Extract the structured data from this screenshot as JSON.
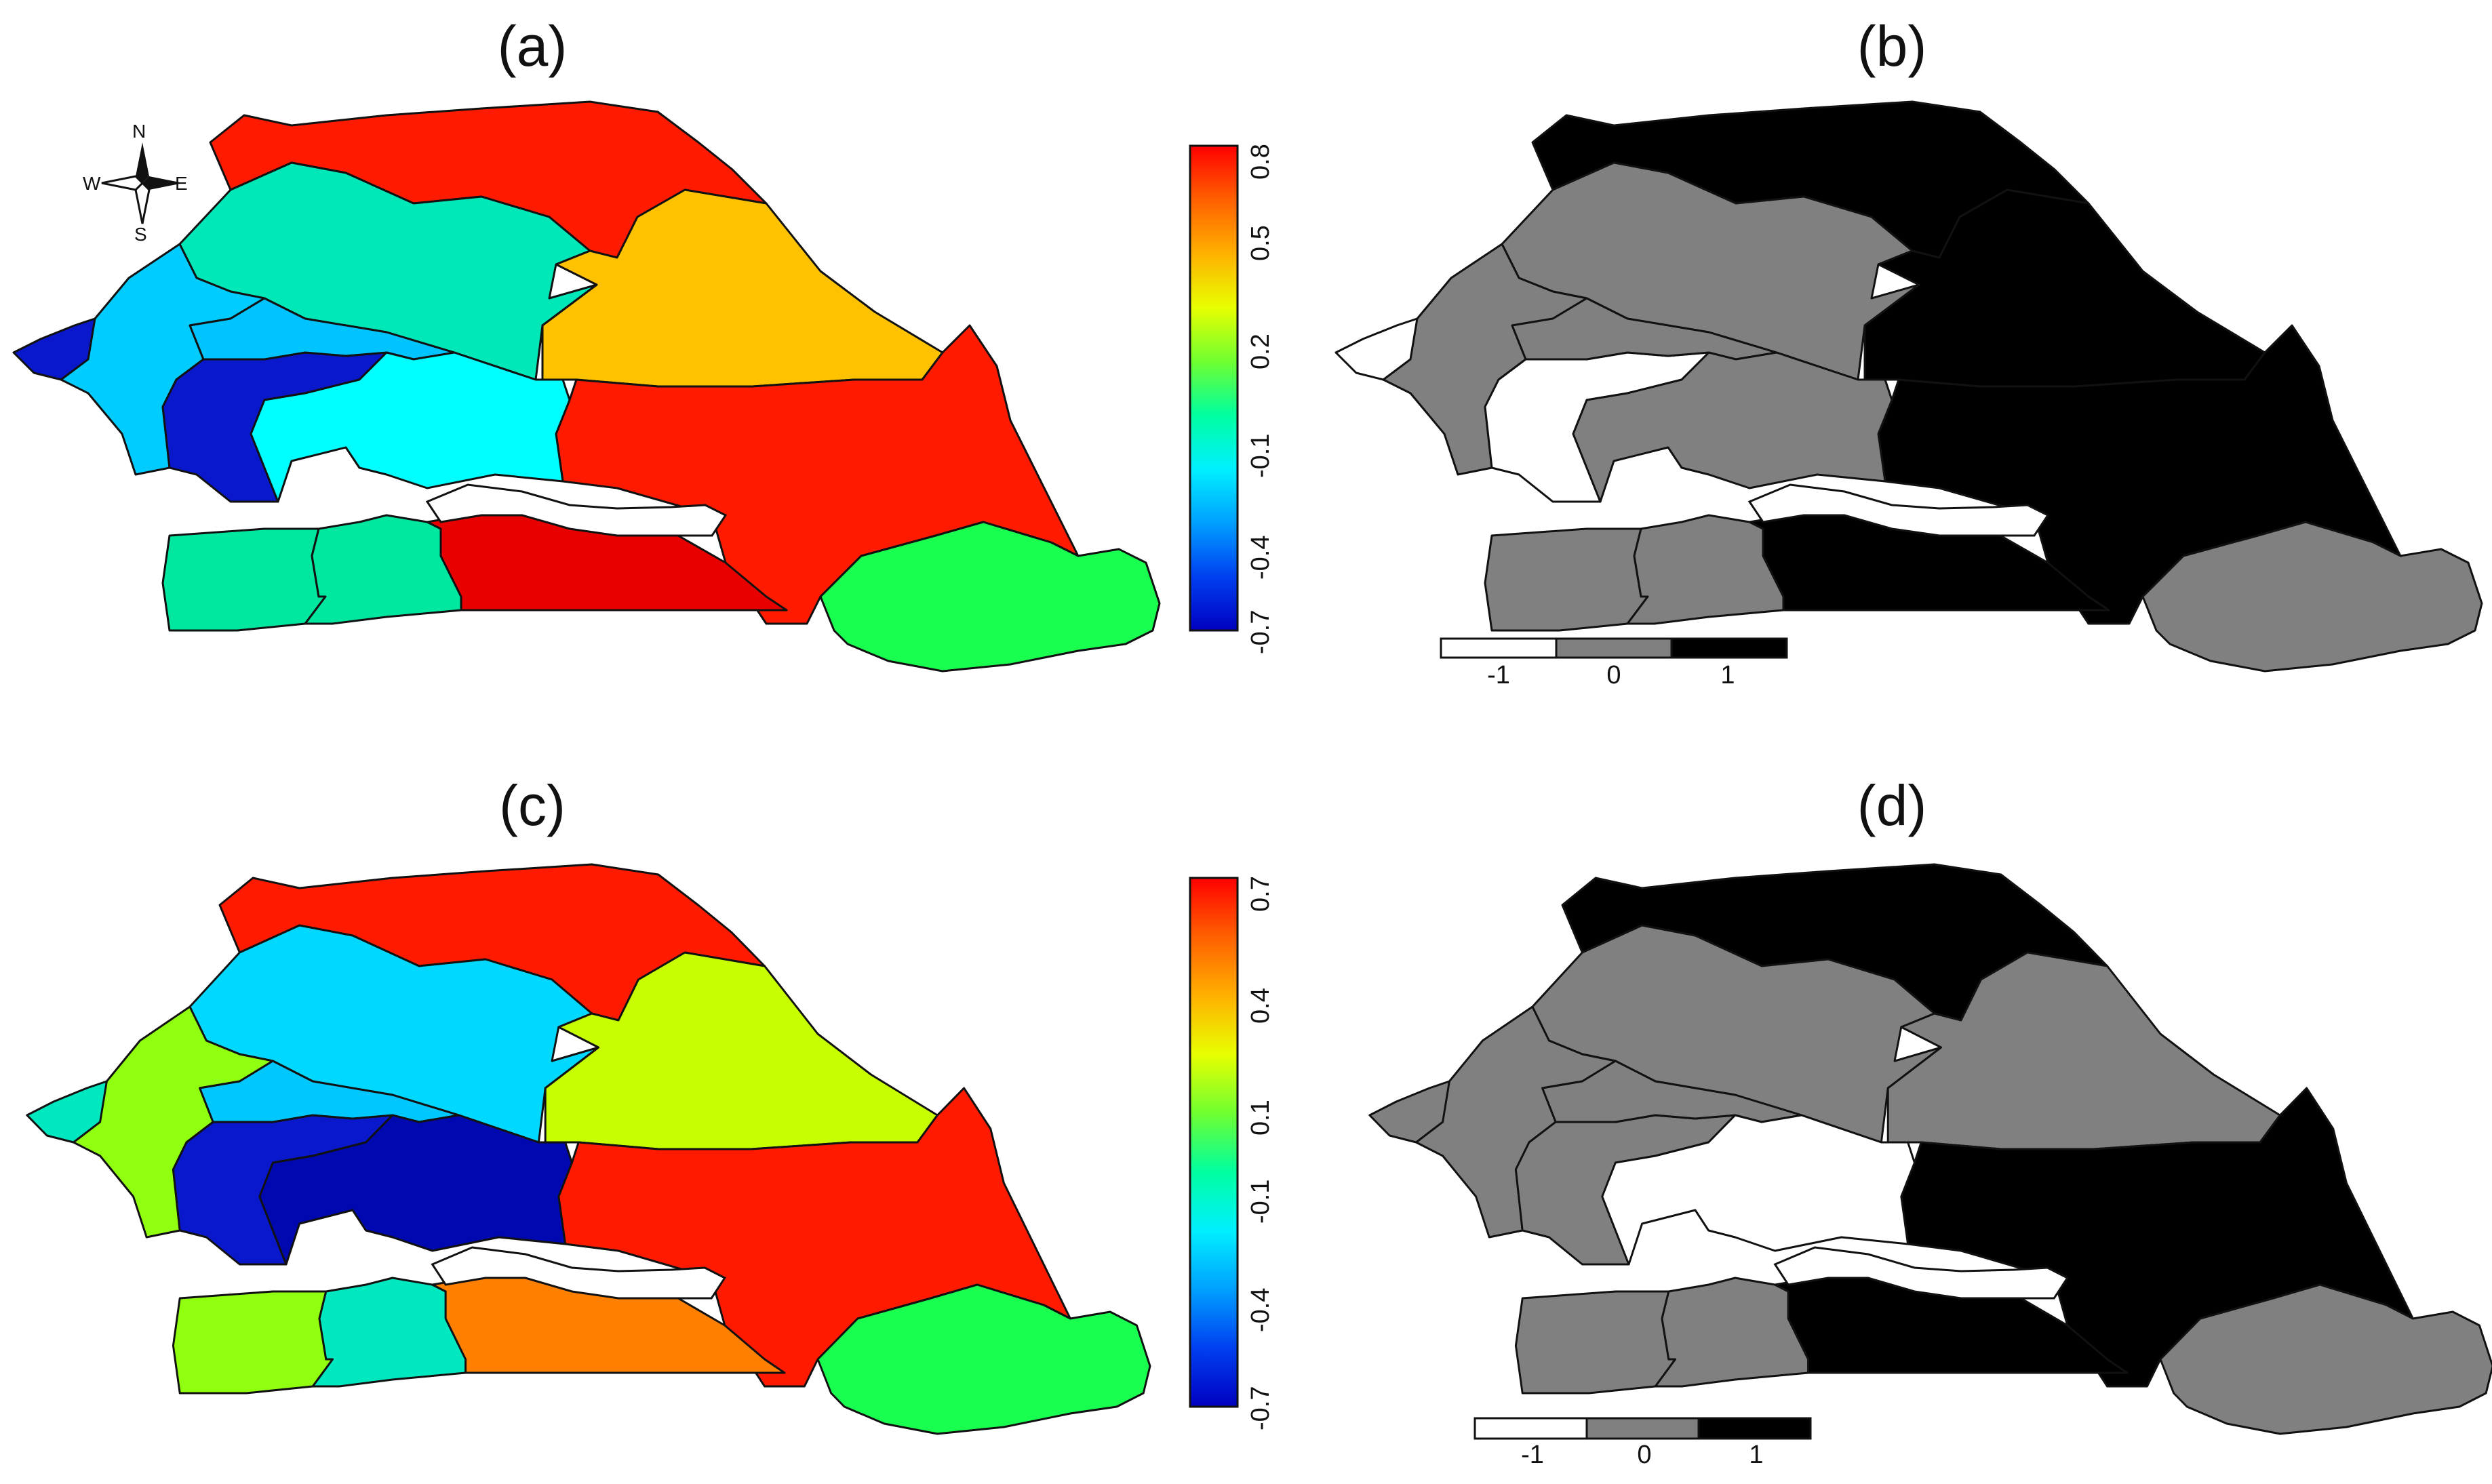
{
  "panels": [
    {
      "id": "a",
      "title": "(a)",
      "legend": {
        "type": "continuous",
        "tick_labels": [
          "0.8",
          "0.5",
          "0.2",
          "-0.1",
          "-0.4",
          "-0.7"
        ],
        "tick_values": [
          0.8,
          0.5,
          0.2,
          -0.1,
          -0.4,
          -0.7
        ],
        "range": [
          -0.7,
          0.8
        ]
      },
      "regions": {
        "north": "#ff1a00",
        "center_north": "#00e8b8",
        "center": "#ffc200",
        "east": "#ff1a00",
        "west": "#00ccff",
        "dakar": "#0a18cc",
        "thies_w": "#0a18cc",
        "thies_e": "#00c4ff",
        "kaolack": "#00ffff",
        "ziguinchor": "#00e8a0",
        "sedhiou": "#00e8a0",
        "kolda": "#e80000",
        "kedougou": "#18ff50",
        "south_west": "#1a30d6"
      }
    },
    {
      "id": "b",
      "title": "(b)",
      "legend": {
        "type": "discrete",
        "classes": [
          "-1",
          "0",
          "1"
        ],
        "colors": [
          "#ffffff",
          "#808080",
          "#000000"
        ]
      },
      "regions": {
        "north": "#000000",
        "center_north": "#808080",
        "center": "#000000",
        "east": "#000000",
        "west": "#808080",
        "dakar": "#ffffff",
        "thies_w": "#ffffff",
        "thies_e": "#808080",
        "kaolack": "#808080",
        "ziguinchor": "#808080",
        "sedhiou": "#808080",
        "kolda": "#000000",
        "kedougou": "#808080",
        "south_west": "#808080"
      }
    },
    {
      "id": "c",
      "title": "(c)",
      "legend": {
        "type": "continuous",
        "tick_labels": [
          "0.7",
          "0.4",
          "0.1",
          "-0.1",
          "-0.4",
          "-0.7"
        ],
        "tick_values": [
          0.7,
          0.4,
          0.1,
          -0.1,
          -0.4,
          -0.7
        ],
        "range": [
          -0.7,
          0.7
        ]
      },
      "regions": {
        "north": "#ff1a00",
        "center_north": "#00d8ff",
        "center": "#c8ff00",
        "east": "#ff1a00",
        "west": "#90ff10",
        "dakar": "#00e8c0",
        "thies_w": "#0a18cc",
        "thies_e": "#00c8ff",
        "kaolack": "#0008b0",
        "ziguinchor": "#90ff10",
        "sedhiou": "#00e8c0",
        "kolda": "#ff8000",
        "kedougou": "#18ff50",
        "south_west": "#1030d0"
      }
    },
    {
      "id": "d",
      "title": "(d)",
      "legend": {
        "type": "discrete",
        "classes": [
          "-1",
          "0",
          "1"
        ],
        "colors": [
          "#ffffff",
          "#808080",
          "#000000"
        ]
      },
      "regions": {
        "north": "#000000",
        "center_north": "#808080",
        "center": "#808080",
        "east": "#000000",
        "west": "#808080",
        "dakar": "#808080",
        "thies_w": "#808080",
        "thies_e": "#808080",
        "kaolack": "#ffffff",
        "ziguinchor": "#808080",
        "sedhiou": "#808080",
        "kolda": "#000000",
        "kedougou": "#808080",
        "south_west": "#808080"
      }
    }
  ],
  "compass": {
    "n": "N",
    "s": "S",
    "e": "E",
    "w": "W"
  }
}
